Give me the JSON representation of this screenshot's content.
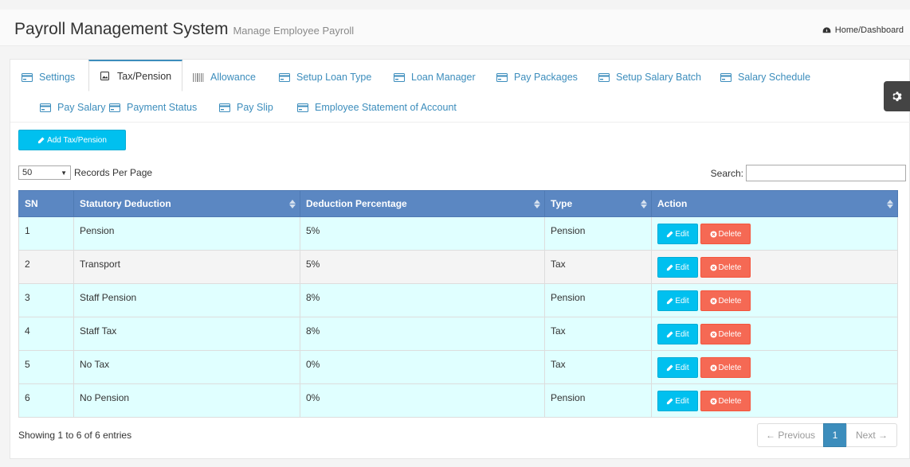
{
  "header": {
    "title": "Payroll Management System",
    "subtitle": "Manage Employee Payroll",
    "breadcrumb": "Home/Dashboard"
  },
  "tabs": [
    {
      "label": "Settings",
      "icon": "card-icon",
      "active": false
    },
    {
      "label": "Tax/Pension",
      "icon": "image-icon",
      "active": true
    },
    {
      "label": "Allowance",
      "icon": "barcode-icon",
      "active": false
    },
    {
      "label": "Setup Loan Type",
      "icon": "card-icon",
      "active": false
    },
    {
      "label": "Loan Manager",
      "icon": "card-icon",
      "active": false
    },
    {
      "label": "Pay Packages",
      "icon": "card-icon",
      "active": false
    },
    {
      "label": "Setup Salary Batch",
      "icon": "card-icon",
      "active": false
    },
    {
      "label": "Salary Schedule",
      "icon": "card-icon",
      "active": false
    },
    {
      "label": "Pay Salary",
      "icon": "card-icon",
      "active": false
    },
    {
      "label": "Payment Status",
      "icon": "card-icon",
      "active": false
    },
    {
      "label": "Pay Slip",
      "icon": "card-icon",
      "active": false
    },
    {
      "label": "Employee Statement of Account",
      "icon": "card-icon",
      "active": false
    }
  ],
  "toolbar": {
    "add_label": "Add Tax/Pension",
    "length_value": "50",
    "length_label": "Records Per Page",
    "search_label": "Search:",
    "search_value": ""
  },
  "table": {
    "columns": [
      "SN",
      "Statutory Deduction",
      "Deduction Percentage",
      "Type",
      "Action"
    ],
    "rows": [
      {
        "sn": "1",
        "deduction": "Pension",
        "percentage": "5%",
        "type": "Pension"
      },
      {
        "sn": "2",
        "deduction": "Transport",
        "percentage": "5%",
        "type": "Tax"
      },
      {
        "sn": "3",
        "deduction": "Staff Pension",
        "percentage": "8%",
        "type": "Pension"
      },
      {
        "sn": "4",
        "deduction": "Staff Tax",
        "percentage": "8%",
        "type": "Tax"
      },
      {
        "sn": "5",
        "deduction": "No Tax",
        "percentage": "0%",
        "type": "Tax"
      },
      {
        "sn": "6",
        "deduction": "No Pension",
        "percentage": "0%",
        "type": "Pension"
      }
    ],
    "edit_label": "Edit",
    "delete_label": "Delete"
  },
  "footer": {
    "info": "Showing 1 to 6 of 6 entries",
    "prev_label": "← Previous",
    "page": "1",
    "next_label": "Next →"
  },
  "colors": {
    "accent": "#3c8dbc",
    "header_bg": "#5b87c2",
    "row_odd": "#e0ffff",
    "edit": "#00c0ef",
    "delete": "#f56954"
  }
}
